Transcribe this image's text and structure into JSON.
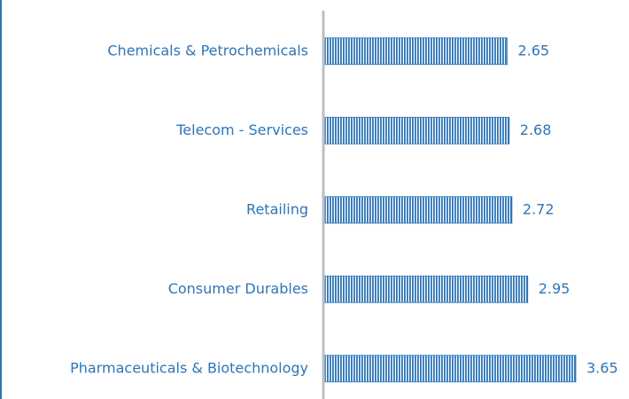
{
  "chart_data": {
    "type": "bar",
    "orientation": "horizontal",
    "categories": [
      "Chemicals & Petrochemicals",
      "Telecom - Services",
      "Retailing",
      "Consumer Durables",
      "Pharmaceuticals & Biotechnology"
    ],
    "values": [
      2.65,
      2.68,
      2.72,
      2.95,
      3.65
    ],
    "color": "#2e75b6"
  }
}
